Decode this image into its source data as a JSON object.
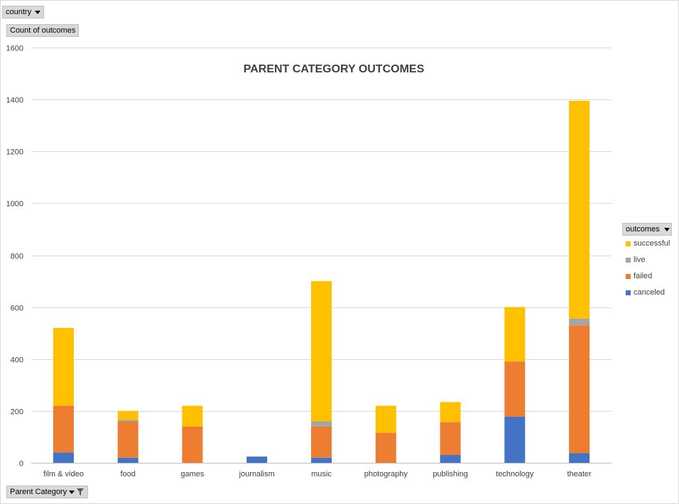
{
  "filters": {
    "country_label": "country",
    "values_label": "Count of outcomes",
    "axis_field_label": "Parent Category"
  },
  "legend": {
    "header": "outcomes",
    "items": [
      {
        "label": "successful",
        "color": "#ffc000"
      },
      {
        "label": "live",
        "color": "#a5a5a5"
      },
      {
        "label": "failed",
        "color": "#ed7d31"
      },
      {
        "label": "canceled",
        "color": "#4472c4"
      }
    ]
  },
  "chart_data": {
    "type": "bar",
    "stacked": true,
    "title": "PARENT CATEGORY OUTCOMES",
    "xlabel": "",
    "ylabel": "",
    "ylim": [
      0,
      1600
    ],
    "yticks": [
      0,
      200,
      400,
      600,
      800,
      1000,
      1200,
      1400,
      1600
    ],
    "grid": true,
    "legend_position": "right",
    "categories": [
      "film & video",
      "food",
      "games",
      "journalism",
      "music",
      "photography",
      "publishing",
      "technology",
      "theater"
    ],
    "series": [
      {
        "name": "canceled",
        "color": "#4472c4",
        "values": [
          40,
          20,
          0,
          24,
          20,
          0,
          30,
          178,
          37
        ]
      },
      {
        "name": "failed",
        "color": "#ed7d31",
        "values": [
          180,
          140,
          140,
          0,
          120,
          116,
          127,
          212,
          493
        ]
      },
      {
        "name": "live",
        "color": "#a5a5a5",
        "values": [
          0,
          6,
          0,
          0,
          20,
          0,
          0,
          0,
          26
        ]
      },
      {
        "name": "successful",
        "color": "#ffc000",
        "values": [
          300,
          34,
          80,
          0,
          540,
          104,
          77,
          210,
          839
        ]
      }
    ]
  }
}
